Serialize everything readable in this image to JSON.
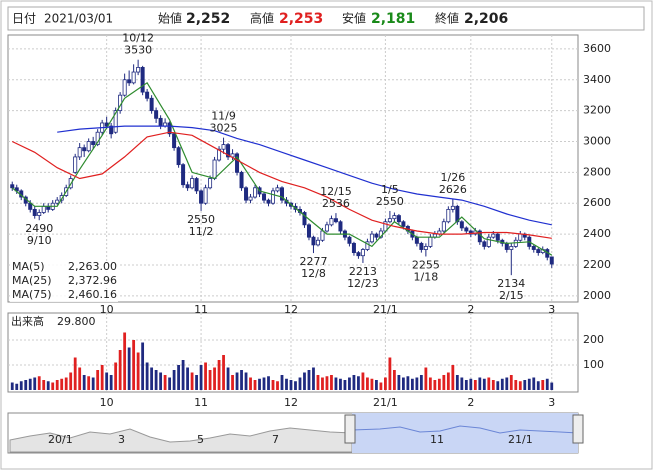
{
  "header": {
    "date_label": "日付",
    "date": "2021/03/01",
    "open_label": "始値",
    "open": "2,252",
    "high_label": "高値",
    "high": "2,253",
    "low_label": "安値",
    "low": "2,181",
    "close_label": "終値",
    "close": "2,206"
  },
  "chart_data": {
    "type": "candlestick",
    "candles": [
      [
        2720,
        2740,
        2680,
        2700
      ],
      [
        2700,
        2720,
        2660,
        2680
      ],
      [
        2680,
        2690,
        2620,
        2640
      ],
      [
        2640,
        2650,
        2580,
        2600
      ],
      [
        2600,
        2620,
        2540,
        2560
      ],
      [
        2560,
        2580,
        2500,
        2520
      ],
      [
        2520,
        2560,
        2490,
        2540
      ],
      [
        2540,
        2600,
        2530,
        2580
      ],
      [
        2580,
        2600,
        2540,
        2560
      ],
      [
        2560,
        2620,
        2550,
        2600
      ],
      [
        2600,
        2640,
        2590,
        2620
      ],
      [
        2620,
        2670,
        2600,
        2650
      ],
      [
        2650,
        2720,
        2640,
        2700
      ],
      [
        2700,
        2780,
        2690,
        2760
      ],
      [
        2800,
        2920,
        2790,
        2900
      ],
      [
        2900,
        2990,
        2880,
        2960
      ],
      [
        2960,
        2980,
        2900,
        2940
      ],
      [
        2940,
        3020,
        2930,
        3000
      ],
      [
        3000,
        3030,
        2950,
        2980
      ],
      [
        2980,
        3080,
        2970,
        3060
      ],
      [
        3060,
        3140,
        3040,
        3120
      ],
      [
        3120,
        3160,
        3080,
        3100
      ],
      [
        3100,
        3120,
        3020,
        3050
      ],
      [
        3060,
        3220,
        3050,
        3200
      ],
      [
        3200,
        3320,
        3180,
        3300
      ],
      [
        3300,
        3440,
        3290,
        3400
      ],
      [
        3400,
        3460,
        3360,
        3380
      ],
      [
        3380,
        3500,
        3370,
        3450
      ],
      [
        3450,
        3530,
        3430,
        3480
      ],
      [
        3480,
        3490,
        3300,
        3320
      ],
      [
        3320,
        3340,
        3260,
        3280
      ],
      [
        3280,
        3300,
        3180,
        3200
      ],
      [
        3200,
        3220,
        3120,
        3150
      ],
      [
        3150,
        3170,
        3080,
        3100
      ],
      [
        3100,
        3150,
        3090,
        3120
      ],
      [
        3120,
        3130,
        3030,
        3050
      ],
      [
        3050,
        3060,
        2940,
        2960
      ],
      [
        2960,
        2970,
        2830,
        2850
      ],
      [
        2850,
        2860,
        2700,
        2720
      ],
      [
        2720,
        2740,
        2680,
        2700
      ],
      [
        2700,
        2780,
        2690,
        2760
      ],
      [
        2760,
        2770,
        2660,
        2680
      ],
      [
        2680,
        2690,
        2550,
        2600
      ],
      [
        2600,
        2720,
        2590,
        2700
      ],
      [
        2700,
        2780,
        2690,
        2760
      ],
      [
        2760,
        2900,
        2750,
        2880
      ],
      [
        2880,
        2970,
        2870,
        2950
      ],
      [
        2950,
        3025,
        2920,
        2980
      ],
      [
        2980,
        2990,
        2880,
        2900
      ],
      [
        2900,
        2950,
        2880,
        2920
      ],
      [
        2920,
        2930,
        2780,
        2800
      ],
      [
        2800,
        2810,
        2680,
        2700
      ],
      [
        2700,
        2710,
        2600,
        2620
      ],
      [
        2620,
        2660,
        2600,
        2640
      ],
      [
        2640,
        2720,
        2630,
        2700
      ],
      [
        2700,
        2710,
        2640,
        2660
      ],
      [
        2660,
        2670,
        2600,
        2620
      ],
      [
        2620,
        2630,
        2580,
        2600
      ],
      [
        2600,
        2700,
        2590,
        2680
      ],
      [
        2680,
        2720,
        2670,
        2700
      ],
      [
        2700,
        2710,
        2600,
        2620
      ],
      [
        2620,
        2640,
        2580,
        2600
      ],
      [
        2600,
        2610,
        2560,
        2580
      ],
      [
        2580,
        2600,
        2540,
        2560
      ],
      [
        2560,
        2580,
        2520,
        2540
      ],
      [
        2540,
        2550,
        2440,
        2460
      ],
      [
        2460,
        2470,
        2360,
        2380
      ],
      [
        2380,
        2390,
        2277,
        2330
      ],
      [
        2330,
        2380,
        2320,
        2360
      ],
      [
        2360,
        2440,
        2350,
        2420
      ],
      [
        2420,
        2480,
        2410,
        2460
      ],
      [
        2460,
        2520,
        2450,
        2500
      ],
      [
        2500,
        2536,
        2470,
        2480
      ],
      [
        2480,
        2490,
        2400,
        2420
      ],
      [
        2420,
        2430,
        2360,
        2380
      ],
      [
        2380,
        2390,
        2320,
        2340
      ],
      [
        2340,
        2350,
        2260,
        2280
      ],
      [
        2280,
        2290,
        2240,
        2260
      ],
      [
        2260,
        2310,
        2213,
        2300
      ],
      [
        2300,
        2370,
        2290,
        2350
      ],
      [
        2350,
        2420,
        2340,
        2400
      ],
      [
        2400,
        2410,
        2360,
        2380
      ],
      [
        2380,
        2440,
        2370,
        2420
      ],
      [
        2420,
        2500,
        2410,
        2480
      ],
      [
        2480,
        2550,
        2470,
        2500
      ],
      [
        2500,
        2540,
        2480,
        2520
      ],
      [
        2520,
        2530,
        2460,
        2480
      ],
      [
        2480,
        2490,
        2430,
        2450
      ],
      [
        2450,
        2460,
        2400,
        2420
      ],
      [
        2420,
        2430,
        2360,
        2380
      ],
      [
        2380,
        2390,
        2320,
        2340
      ],
      [
        2340,
        2350,
        2280,
        2300
      ],
      [
        2300,
        2340,
        2255,
        2320
      ],
      [
        2320,
        2400,
        2310,
        2380
      ],
      [
        2380,
        2420,
        2370,
        2400
      ],
      [
        2400,
        2440,
        2390,
        2420
      ],
      [
        2420,
        2500,
        2410,
        2480
      ],
      [
        2480,
        2580,
        2470,
        2560
      ],
      [
        2560,
        2626,
        2540,
        2580
      ],
      [
        2580,
        2590,
        2460,
        2480
      ],
      [
        2480,
        2490,
        2420,
        2440
      ],
      [
        2440,
        2450,
        2400,
        2420
      ],
      [
        2420,
        2430,
        2380,
        2400
      ],
      [
        2400,
        2440,
        2390,
        2420
      ],
      [
        2420,
        2430,
        2330,
        2350
      ],
      [
        2350,
        2360,
        2300,
        2320
      ],
      [
        2320,
        2400,
        2310,
        2380
      ],
      [
        2380,
        2420,
        2370,
        2400
      ],
      [
        2400,
        2410,
        2340,
        2360
      ],
      [
        2360,
        2370,
        2320,
        2340
      ],
      [
        2340,
        2350,
        2280,
        2300
      ],
      [
        2300,
        2340,
        2134,
        2320
      ],
      [
        2320,
        2380,
        2310,
        2360
      ],
      [
        2360,
        2420,
        2350,
        2400
      ],
      [
        2400,
        2410,
        2360,
        2380
      ],
      [
        2380,
        2390,
        2300,
        2320
      ],
      [
        2320,
        2330,
        2280,
        2300
      ],
      [
        2300,
        2310,
        2260,
        2280
      ],
      [
        2280,
        2320,
        2270,
        2300
      ],
      [
        2300,
        2310,
        2230,
        2250
      ],
      [
        2252,
        2253,
        2181,
        2206
      ]
    ],
    "up_color": "#ffffff",
    "down_color": "#1f2a80",
    "outline_color": "#1f2a80",
    "ylim": [
      1960,
      3690
    ],
    "yticks": [
      2000,
      2200,
      2400,
      2600,
      2800,
      3000,
      3200,
      3400,
      3600
    ],
    "xlim": [
      -0.5,
      120.5
    ],
    "xticks": [
      {
        "value": 21,
        "label": "10"
      },
      {
        "value": 42,
        "label": "11"
      },
      {
        "value": 62,
        "label": "12"
      },
      {
        "value": 83,
        "label": "21/1"
      },
      {
        "value": 102,
        "label": "2"
      },
      {
        "value": 120,
        "label": "3"
      }
    ],
    "grid": true,
    "annotations": [
      {
        "candle": 28,
        "at": "high",
        "date": "10/12"
      },
      {
        "candle": 47,
        "at": "high",
        "date": "11/9"
      },
      {
        "candle": 72,
        "at": "high",
        "date": "12/15"
      },
      {
        "candle": 84,
        "at": "high",
        "date": "1/5"
      },
      {
        "candle": 98,
        "at": "high",
        "date": "1/26"
      },
      {
        "candle": 6,
        "at": "low",
        "date": "9/10"
      },
      {
        "candle": 42,
        "at": "low",
        "date": "11/2"
      },
      {
        "candle": 67,
        "at": "low",
        "date": "12/8"
      },
      {
        "candle": 78,
        "at": "low",
        "date": "12/23"
      },
      {
        "candle": 92,
        "at": "low",
        "date": "1/18"
      },
      {
        "candle": 111,
        "at": "low",
        "date": "2/15"
      }
    ],
    "series": [
      {
        "name": "MA(5)",
        "color": "#2e8b2e",
        "last_label": "2,263.00",
        "x": [
          0,
          5,
          10,
          15,
          20,
          25,
          30,
          35,
          40,
          45,
          50,
          55,
          60,
          65,
          70,
          75,
          80,
          85,
          90,
          95,
          100,
          105,
          110,
          115,
          120
        ],
        "values": [
          2700,
          2580,
          2580,
          2820,
          3040,
          3280,
          3380,
          3140,
          2800,
          2760,
          2900,
          2680,
          2640,
          2520,
          2400,
          2400,
          2320,
          2480,
          2380,
          2380,
          2510,
          2370,
          2340,
          2350,
          2263
        ]
      },
      {
        "name": "MA(25)",
        "color": "#e02020",
        "last_label": "2,372.96",
        "x": [
          0,
          5,
          10,
          15,
          20,
          25,
          30,
          35,
          40,
          45,
          50,
          55,
          60,
          65,
          70,
          75,
          80,
          85,
          90,
          95,
          100,
          105,
          110,
          115,
          120
        ],
        "values": [
          3000,
          2930,
          2830,
          2760,
          2790,
          2900,
          3030,
          3060,
          3040,
          2960,
          2880,
          2800,
          2740,
          2700,
          2640,
          2560,
          2490,
          2450,
          2420,
          2400,
          2400,
          2410,
          2410,
          2395,
          2373
        ]
      },
      {
        "name": "MA(75)",
        "color": "#2030d0",
        "last_label": "2,460.16",
        "x": [
          0,
          5,
          10,
          15,
          20,
          25,
          30,
          35,
          40,
          45,
          50,
          55,
          60,
          65,
          70,
          75,
          80,
          85,
          90,
          95,
          100,
          105,
          110,
          115,
          120
        ],
        "values": [
          null,
          null,
          3060,
          3080,
          3090,
          3100,
          3100,
          3100,
          3090,
          3070,
          3020,
          2980,
          2930,
          2880,
          2830,
          2780,
          2730,
          2690,
          2660,
          2640,
          2620,
          2580,
          2530,
          2490,
          2460
        ]
      }
    ],
    "volume": {
      "label": "出来高",
      "last_label": "29.800",
      "up_color": "#e02020",
      "down_color": "#1f2a80",
      "values": [
        30,
        25,
        35,
        40,
        45,
        50,
        55,
        40,
        35,
        30,
        40,
        45,
        50,
        70,
        130,
        90,
        60,
        55,
        50,
        80,
        100,
        70,
        60,
        110,
        160,
        230,
        170,
        200,
        150,
        190,
        110,
        90,
        80,
        70,
        60,
        50,
        80,
        100,
        120,
        90,
        70,
        60,
        100,
        110,
        80,
        90,
        120,
        140,
        90,
        60,
        70,
        80,
        70,
        50,
        40,
        45,
        50,
        55,
        40,
        35,
        60,
        45,
        40,
        35,
        50,
        70,
        80,
        90,
        60,
        50,
        55,
        60,
        50,
        45,
        40,
        50,
        60,
        55,
        70,
        50,
        45,
        40,
        30,
        50,
        130,
        80,
        60,
        50,
        55,
        45,
        50,
        60,
        90,
        50,
        40,
        45,
        60,
        70,
        100,
        60,
        50,
        40,
        45,
        40,
        50,
        45,
        50,
        40,
        35,
        45,
        50,
        60,
        40,
        35,
        40,
        45,
        50,
        35,
        40,
        45,
        29.8
      ],
      "ylim": [
        0,
        300
      ],
      "yticks": [
        100,
        200
      ]
    }
  },
  "navigator": {
    "labels": [
      "20/1",
      "3",
      "5",
      "7",
      "11",
      "21/1"
    ]
  }
}
